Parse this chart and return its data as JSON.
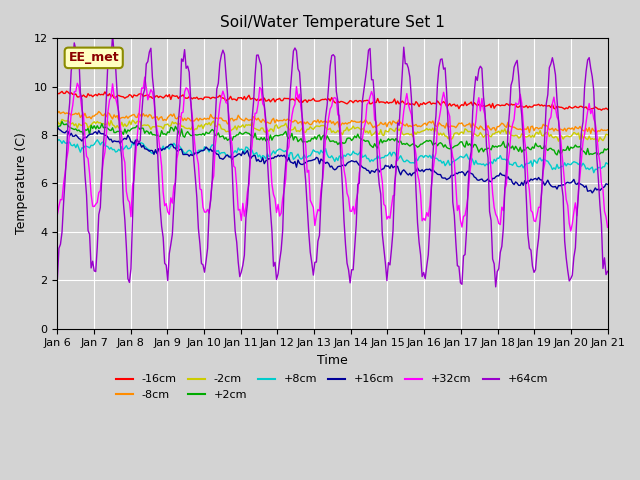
{
  "title": "Soil/Water Temperature Set 1",
  "xlabel": "Time",
  "ylabel": "Temperature (C)",
  "ylim": [
    0,
    12
  ],
  "xlim": [
    0,
    15
  ],
  "background_color": "#d3d3d3",
  "plot_bg_color": "#d3d3d3",
  "annotation_text": "EE_met",
  "annotation_bg": "#ffffc0",
  "annotation_border": "#8b8b00",
  "x_tick_labels": [
    "Jan 6",
    "Jan 7",
    "Jan 8",
    "Jan 9",
    "Jan 10",
    "Jan 11",
    "Jan 12",
    "Jan 13",
    "Jan 14",
    "Jan 15",
    "Jan 16",
    "Jan 17",
    "Jan 18",
    "Jan 19",
    "Jan 20",
    "Jan 21"
  ],
  "series": {
    "-16cm": {
      "color": "#ff0000",
      "base": 9.7,
      "amplitude": 0.05,
      "trend": -0.05,
      "noise": 0.08
    },
    "-8cm": {
      "color": "#ff8c00",
      "base": 8.85,
      "amplitude": 0.05,
      "trend": -0.06,
      "noise": 0.08
    },
    "-2cm": {
      "color": "#cccc00",
      "base": 8.5,
      "amplitude": 0.08,
      "trend": -0.07,
      "noise": 0.1
    },
    "+2cm": {
      "color": "#00aa00",
      "base": 8.25,
      "amplitude": 0.1,
      "trend": -0.08,
      "noise": 0.1
    },
    "+8cm": {
      "color": "#00cccc",
      "base": 7.6,
      "amplitude": 0.12,
      "trend": -0.1,
      "noise": 0.1
    },
    "+16cm": {
      "color": "#000099",
      "base": 7.3,
      "amplitude": 0.15,
      "trend": -0.1,
      "noise": 0.08
    },
    "+32cm": {
      "color": "#ff00ff",
      "base": 7.5,
      "amplitude": 2.5,
      "trend": -0.08,
      "noise": 0.3
    },
    "+64cm": {
      "color": "#9900cc",
      "base": 8.0,
      "amplitude": 4.0,
      "trend": -0.1,
      "noise": 0.4
    }
  },
  "legend_order": [
    "-16cm",
    "-8cm",
    "-2cm",
    "+2cm",
    "+8cm",
    "+16cm",
    "+32cm",
    "+64cm"
  ],
  "n_points": 360
}
